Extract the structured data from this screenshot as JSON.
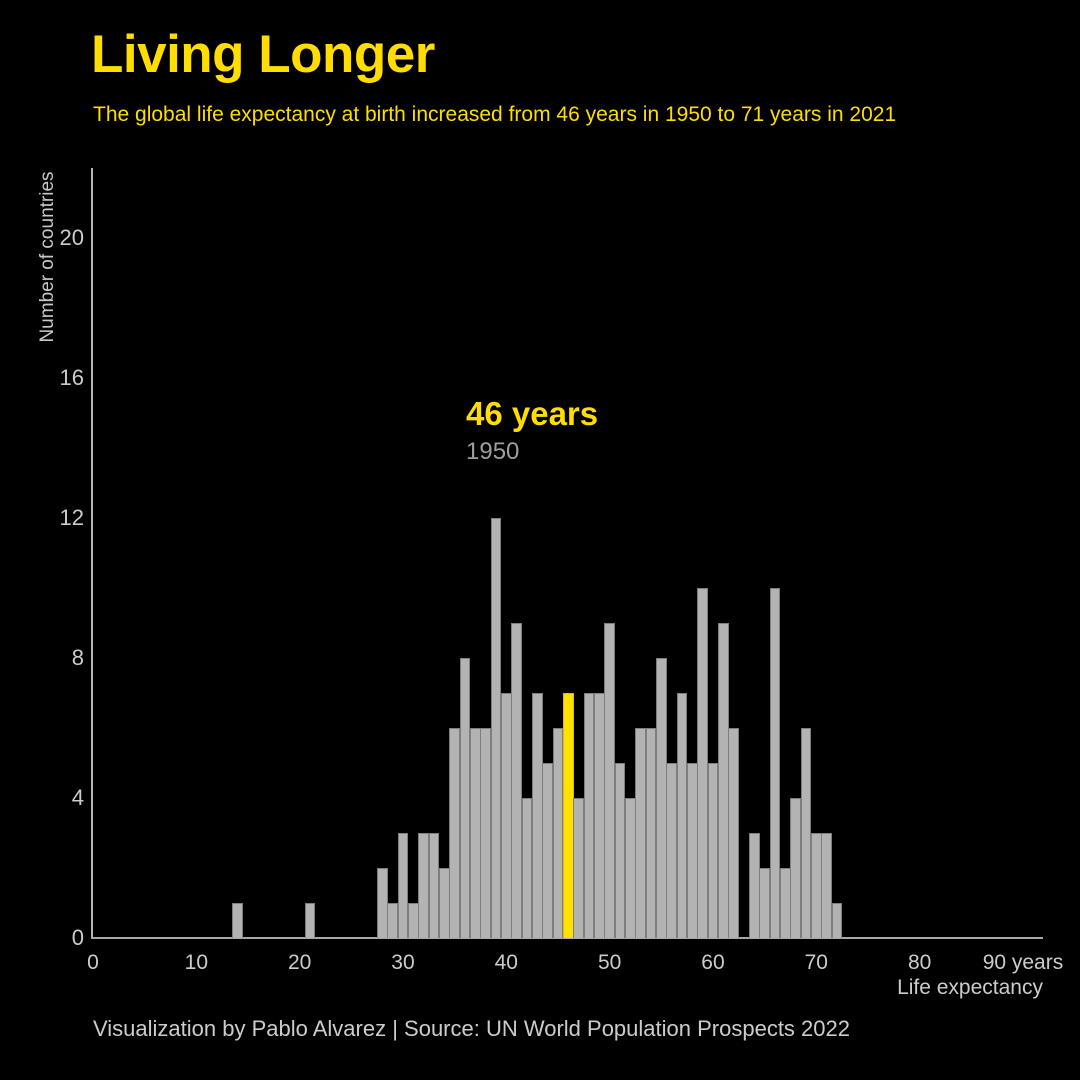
{
  "header": {
    "title": "Living Longer",
    "subtitle": "The global life expectancy at birth increased from 46 years in 1950 to 71 years in 2021"
  },
  "annotation": {
    "value": "46 years",
    "year": "1950"
  },
  "footer": {
    "credit": "Visualization by Pablo Alvarez | Source: UN World Population Prospects 2022"
  },
  "colors": {
    "background": "#000000",
    "accent_yellow": "#ffdd00",
    "highlight_bar": "#ffe000",
    "bar_fill": "#b3b3b3",
    "bar_stroke": "#7e7e7e",
    "axis_line": "#a8a8a8",
    "tick_text": "#cccccc",
    "muted_text": "#9e9e9e"
  },
  "chart_data": {
    "type": "bar",
    "subtype": "histogram",
    "title": "Living Longer",
    "xlabel": "Life expectancy",
    "ylabel": "Number of countries",
    "xlim": [
      0,
      92
    ],
    "ylim": [
      0,
      22
    ],
    "grid": false,
    "legend": false,
    "highlight_year": 46,
    "highlight_annotation": {
      "value": "46 years",
      "year": "1950"
    },
    "y_ticks": [
      0,
      4,
      8,
      12,
      16,
      20
    ],
    "x_ticks": [
      {
        "value": 0,
        "label": "0"
      },
      {
        "value": 10,
        "label": "10"
      },
      {
        "value": 20,
        "label": "20"
      },
      {
        "value": 30,
        "label": "30"
      },
      {
        "value": 40,
        "label": "40"
      },
      {
        "value": 50,
        "label": "50"
      },
      {
        "value": 60,
        "label": "60"
      },
      {
        "value": 70,
        "label": "70"
      },
      {
        "value": 80,
        "label": "80"
      },
      {
        "value": 90,
        "label": "90 years"
      }
    ],
    "bins": [
      {
        "year": 14,
        "count": 1
      },
      {
        "year": 21,
        "count": 1
      },
      {
        "year": 28,
        "count": 2
      },
      {
        "year": 29,
        "count": 1
      },
      {
        "year": 30,
        "count": 3
      },
      {
        "year": 31,
        "count": 1
      },
      {
        "year": 32,
        "count": 3
      },
      {
        "year": 33,
        "count": 3
      },
      {
        "year": 34,
        "count": 2
      },
      {
        "year": 35,
        "count": 6
      },
      {
        "year": 36,
        "count": 8
      },
      {
        "year": 37,
        "count": 6
      },
      {
        "year": 38,
        "count": 6
      },
      {
        "year": 39,
        "count": 12
      },
      {
        "year": 40,
        "count": 7
      },
      {
        "year": 41,
        "count": 9
      },
      {
        "year": 42,
        "count": 4
      },
      {
        "year": 43,
        "count": 7
      },
      {
        "year": 44,
        "count": 5
      },
      {
        "year": 45,
        "count": 6
      },
      {
        "year": 46,
        "count": 7
      },
      {
        "year": 47,
        "count": 4
      },
      {
        "year": 48,
        "count": 7
      },
      {
        "year": 49,
        "count": 7
      },
      {
        "year": 50,
        "count": 9
      },
      {
        "year": 51,
        "count": 5
      },
      {
        "year": 52,
        "count": 4
      },
      {
        "year": 53,
        "count": 6
      },
      {
        "year": 54,
        "count": 6
      },
      {
        "year": 55,
        "count": 8
      },
      {
        "year": 56,
        "count": 5
      },
      {
        "year": 57,
        "count": 7
      },
      {
        "year": 58,
        "count": 5
      },
      {
        "year": 59,
        "count": 10
      },
      {
        "year": 60,
        "count": 5
      },
      {
        "year": 61,
        "count": 9
      },
      {
        "year": 62,
        "count": 6
      },
      {
        "year": 63,
        "count": 0
      },
      {
        "year": 64,
        "count": 3
      },
      {
        "year": 65,
        "count": 2
      },
      {
        "year": 66,
        "count": 10
      },
      {
        "year": 67,
        "count": 2
      },
      {
        "year": 68,
        "count": 4
      },
      {
        "year": 69,
        "count": 6
      },
      {
        "year": 70,
        "count": 3
      },
      {
        "year": 71,
        "count": 3
      },
      {
        "year": 72,
        "count": 1
      }
    ]
  }
}
